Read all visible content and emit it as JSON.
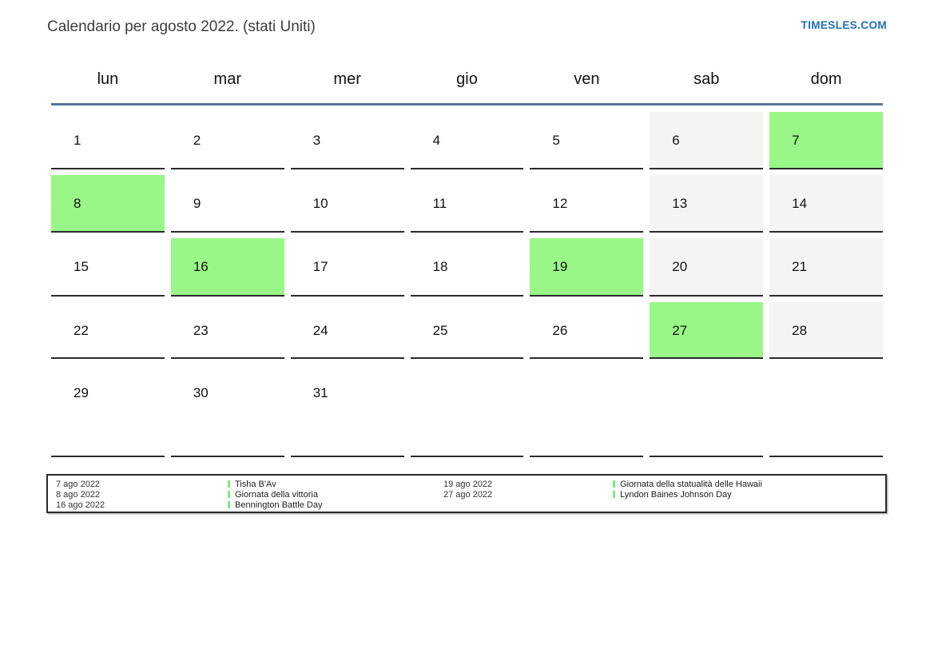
{
  "page": {
    "title": "Calendario per agosto 2022. (stati Uniti)",
    "brand": "TIMESLES.COM"
  },
  "colors": {
    "holiday_green": "#98f787",
    "weekend_gray": "#f4f4f3",
    "header_line_blue": "#54749c",
    "brand_blue": "#1e6fbc",
    "cell_border_dark": "#2b2b2b",
    "legend_marker_green": "#7ee87e"
  },
  "calendar": {
    "weekday_headers": [
      "lun",
      "mar",
      "mer",
      "gio",
      "ven",
      "sab",
      "dom"
    ],
    "weeks": [
      [
        {
          "day": "1",
          "type": "normal"
        },
        {
          "day": "2",
          "type": "normal"
        },
        {
          "day": "3",
          "type": "normal"
        },
        {
          "day": "4",
          "type": "normal"
        },
        {
          "day": "5",
          "type": "normal"
        },
        {
          "day": "6",
          "type": "weekend"
        },
        {
          "day": "7",
          "type": "holiday"
        }
      ],
      [
        {
          "day": "8",
          "type": "holiday"
        },
        {
          "day": "9",
          "type": "normal"
        },
        {
          "day": "10",
          "type": "normal"
        },
        {
          "day": "11",
          "type": "normal"
        },
        {
          "day": "12",
          "type": "normal"
        },
        {
          "day": "13",
          "type": "weekend"
        },
        {
          "day": "14",
          "type": "weekend"
        }
      ],
      [
        {
          "day": "15",
          "type": "normal"
        },
        {
          "day": "16",
          "type": "holiday"
        },
        {
          "day": "17",
          "type": "normal"
        },
        {
          "day": "18",
          "type": "normal"
        },
        {
          "day": "19",
          "type": "holiday"
        },
        {
          "day": "20",
          "type": "weekend"
        },
        {
          "day": "21",
          "type": "weekend"
        }
      ],
      [
        {
          "day": "22",
          "type": "normal"
        },
        {
          "day": "23",
          "type": "normal"
        },
        {
          "day": "24",
          "type": "normal"
        },
        {
          "day": "25",
          "type": "normal"
        },
        {
          "day": "26",
          "type": "normal"
        },
        {
          "day": "27",
          "type": "holiday"
        },
        {
          "day": "28",
          "type": "weekend"
        }
      ],
      [
        {
          "day": "29",
          "type": "normal"
        },
        {
          "day": "30",
          "type": "normal"
        },
        {
          "day": "31",
          "type": "normal"
        },
        {
          "day": "",
          "type": "empty"
        },
        {
          "day": "",
          "type": "empty"
        },
        {
          "day": "",
          "type": "empty"
        },
        {
          "day": "",
          "type": "empty"
        }
      ]
    ]
  },
  "legend": {
    "groups": [
      {
        "entries": [
          {
            "date": "7 ago 2022",
            "name": "Tisha B'Av"
          },
          {
            "date": "8 ago 2022",
            "name": "Giornata della vittoria"
          },
          {
            "date": "16 ago 2022",
            "name": "Bennington Battle Day"
          }
        ]
      },
      {
        "entries": [
          {
            "date": "19 ago 2022",
            "name": "Giornata della statualità delle Hawaii"
          },
          {
            "date": "27 ago 2022",
            "name": "Lyndon Baines Johnson Day"
          }
        ]
      }
    ]
  }
}
